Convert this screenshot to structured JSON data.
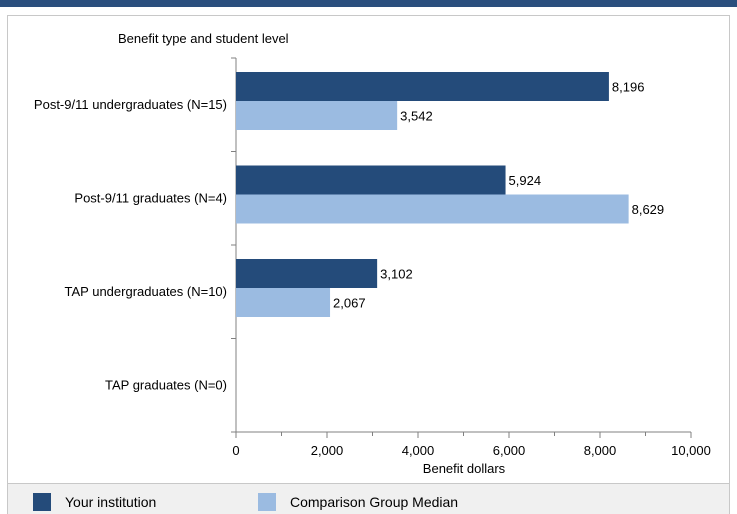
{
  "chart_data": {
    "type": "bar",
    "orientation": "horizontal",
    "ylabel": "Benefit type and student level",
    "xlabel": "Benefit dollars",
    "categories": [
      "Post-9/11 undergraduates (N=15)",
      "Post-9/11 graduates (N=4)",
      "TAP undergraduates (N=10)",
      "TAP graduates (N=0)"
    ],
    "series": [
      {
        "name": "Your institution",
        "color": "#244b7a",
        "values": [
          8196,
          5924,
          3102,
          null
        ],
        "labels": [
          "8,196",
          "5,924",
          "3,102",
          ""
        ]
      },
      {
        "name": "Comparison Group Median",
        "color": "#9bbbe1",
        "values": [
          3542,
          8629,
          2067,
          null
        ],
        "labels": [
          "3,542",
          "8,629",
          "2,067",
          ""
        ]
      }
    ],
    "xlim": [
      0,
      10000
    ],
    "xticks": [
      0,
      2000,
      4000,
      6000,
      8000,
      10000
    ],
    "xtick_labels": [
      "0",
      "2,000",
      "4,000",
      "6,000",
      "8,000",
      "10,000"
    ],
    "grid": false,
    "legend_position": "bottom"
  },
  "colors": {
    "header_bar": "#2b4f7e",
    "legend_background": "#f0f0f0"
  }
}
